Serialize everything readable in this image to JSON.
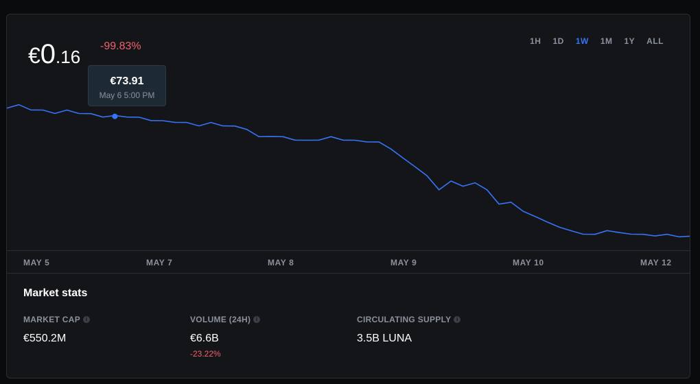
{
  "price": {
    "currency": "€",
    "integer": "0",
    "decimal": ".16",
    "change": "-99.83%"
  },
  "ranges": [
    {
      "label": "1H",
      "active": false
    },
    {
      "label": "1D",
      "active": false
    },
    {
      "label": "1W",
      "active": true
    },
    {
      "label": "1M",
      "active": false
    },
    {
      "label": "1Y",
      "active": false
    },
    {
      "label": "ALL",
      "active": false
    }
  ],
  "tooltip": {
    "value": "€73.91",
    "time": "May 6 5:00 PM"
  },
  "colors": {
    "line": "#3773f5",
    "negative": "#f0616d",
    "muted": "#8a919e"
  },
  "chart_data": {
    "type": "line",
    "x_labels": [
      "MAY 5",
      "MAY 7",
      "MAY 8",
      "MAY 9",
      "MAY 10",
      "MAY 12"
    ],
    "series": [
      {
        "values": [
          79,
          80,
          78,
          77,
          76,
          77,
          76,
          75,
          74,
          73.9,
          74,
          73,
          72,
          71,
          71,
          70,
          69,
          70,
          69,
          68,
          67,
          62,
          63,
          62,
          61,
          60,
          61,
          62,
          61,
          60,
          60,
          59,
          56,
          50,
          46,
          40,
          33,
          37,
          35,
          36,
          33,
          24,
          26,
          20,
          18,
          14,
          12,
          9,
          8,
          7,
          10,
          8,
          8,
          7,
          7,
          7,
          6.5,
          6
        ]
      }
    ],
    "highlight": {
      "value": 73.91,
      "label": "May 6 5:00 PM"
    }
  },
  "stats": {
    "title": "Market stats",
    "market_cap": {
      "label": "MARKET CAP",
      "value": "€550.2M"
    },
    "volume": {
      "label": "VOLUME (24H)",
      "value": "€6.6B",
      "change": "-23.22%"
    },
    "supply": {
      "label": "CIRCULATING SUPPLY",
      "value": "3.5B LUNA"
    }
  }
}
